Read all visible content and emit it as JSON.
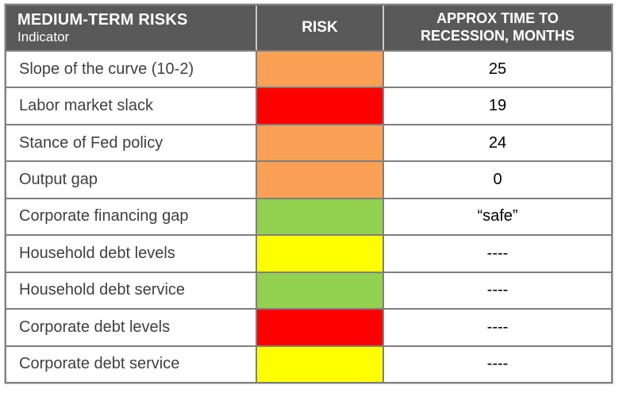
{
  "chart_data": {
    "type": "table",
    "title": "MEDIUM-TERM RISKS",
    "header": {
      "col1_title": "MEDIUM-TERM RISKS",
      "col1_subtitle": "Indicator",
      "col2": "RISK",
      "col3": "APPROX TIME TO RECESSION, MONTHS"
    },
    "columns": [
      "Indicator",
      "RISK",
      "APPROX TIME TO RECESSION, MONTHS"
    ],
    "rows": [
      {
        "indicator": "Slope of the curve (10-2)",
        "risk": "orange",
        "time": "25"
      },
      {
        "indicator": "Labor market slack",
        "risk": "red",
        "time": "19"
      },
      {
        "indicator": "Stance of Fed policy",
        "risk": "orange",
        "time": "24"
      },
      {
        "indicator": "Output gap",
        "risk": "orange",
        "time": "0"
      },
      {
        "indicator": "Corporate financing gap",
        "risk": "green",
        "time": "“safe”"
      },
      {
        "indicator": "Household debt levels",
        "risk": "yellow",
        "time": "----"
      },
      {
        "indicator": "Household debt service",
        "risk": "green",
        "time": "----"
      },
      {
        "indicator": "Corporate debt levels",
        "risk": "red",
        "time": "----"
      },
      {
        "indicator": "Corporate debt service",
        "risk": "yellow",
        "time": "----"
      }
    ]
  },
  "risk_colors": {
    "orange": "#FBA155",
    "red": "#FF0000",
    "green": "#92D050",
    "yellow": "#FFFF00"
  },
  "theme": {
    "header_bg": "#595959",
    "header_text": "#FFFFFF",
    "border": "#7F7F7F",
    "label_text": "#3F3F3F",
    "value_text": "#000000"
  }
}
